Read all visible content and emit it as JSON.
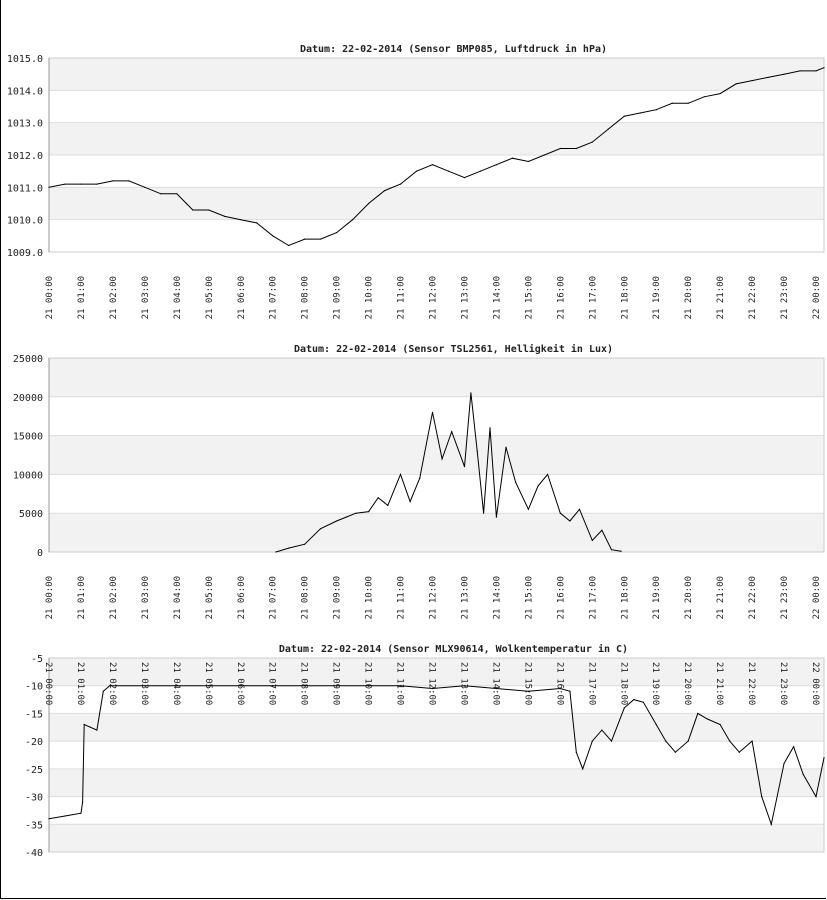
{
  "xticks": [
    "21 00:00",
    "21 01:00",
    "21 02:00",
    "21 03:00",
    "21 04:00",
    "21 05:00",
    "21 06:00",
    "21 07:00",
    "21 08:00",
    "21 09:00",
    "21 10:00",
    "21 11:00",
    "21 12:00",
    "21 13:00",
    "21 14:00",
    "21 15:00",
    "21 16:00",
    "21 17:00",
    "21 18:00",
    "21 19:00",
    "21 20:00",
    "21 21:00",
    "21 22:00",
    "21 23:00",
    "22 00:00"
  ],
  "chart_data": [
    {
      "type": "line",
      "title": "Datum: 22-02-2014 (Sensor BMP085, Luftdruck in hPa)",
      "xlabel": "",
      "ylabel": "",
      "ylim": [
        1009.0,
        1015.0
      ],
      "yticks": [
        "1015.0",
        "1014.0",
        "1013.0",
        "1012.0",
        "1011.0",
        "1010.0",
        "1009.0"
      ],
      "xlim": [
        0,
        24.25
      ],
      "grid": true,
      "series": [
        {
          "x": [
            0,
            0.5,
            1,
            1.5,
            2,
            2.5,
            3,
            3.5,
            4,
            4.3,
            4.5,
            5,
            5.5,
            6,
            6.5,
            7,
            7.5,
            8,
            8.5,
            9,
            9.5,
            10,
            10.5,
            11,
            11.5,
            12,
            12.5,
            13,
            13.5,
            14,
            14.5,
            15,
            15.5,
            16,
            16.5,
            17,
            17.5,
            18,
            18.5,
            19,
            19.5,
            20,
            20.5,
            21,
            21.5,
            22,
            22.5,
            23,
            23.5,
            24,
            24.25
          ],
          "y": [
            1011.0,
            1011.1,
            1011.1,
            1011.1,
            1011.2,
            1011.2,
            1011.0,
            1010.8,
            1010.8,
            1010.5,
            1010.3,
            1010.3,
            1010.1,
            1010.0,
            1009.9,
            1009.5,
            1009.2,
            1009.4,
            1009.4,
            1009.6,
            1010.0,
            1010.5,
            1010.9,
            1011.1,
            1011.5,
            1011.7,
            1011.5,
            1011.3,
            1011.5,
            1011.7,
            1011.9,
            1011.8,
            1012.0,
            1012.2,
            1012.2,
            1012.4,
            1012.8,
            1013.2,
            1013.3,
            1013.4,
            1013.6,
            1013.6,
            1013.8,
            1013.9,
            1014.2,
            1014.3,
            1014.4,
            1014.5,
            1014.6,
            1014.6,
            1014.7
          ]
        }
      ]
    },
    {
      "type": "line",
      "title": "Datum: 22-02-2014 (Sensor TSL2561, Helligkeit in Lux)",
      "xlabel": "",
      "ylabel": "",
      "ylim": [
        0,
        25000
      ],
      "yticks": [
        "25000",
        "20000",
        "15000",
        "10000",
        "5000",
        "0"
      ],
      "xlim": [
        0,
        24.25
      ],
      "grid": true,
      "series": [
        {
          "x": [
            7.1,
            7.5,
            8,
            8.5,
            9,
            9.3,
            9.6,
            10,
            10.3,
            10.6,
            11,
            11.3,
            11.6,
            12,
            12.3,
            12.6,
            13,
            13.2,
            13.4,
            13.6,
            13.8,
            14,
            14.3,
            14.6,
            15,
            15.3,
            15.6,
            16,
            16.3,
            16.6,
            17,
            17.3,
            17.6,
            17.9
          ],
          "y": [
            0,
            500,
            1000,
            3000,
            4000,
            4500,
            5000,
            5200,
            7000,
            6000,
            10000,
            6500,
            9500,
            18000,
            12000,
            15500,
            11000,
            20500,
            13000,
            5000,
            16000,
            4500,
            13500,
            9000,
            5500,
            8500,
            10000,
            5000,
            4000,
            5500,
            1500,
            2800,
            300,
            100
          ]
        }
      ]
    },
    {
      "type": "line",
      "title": "Datum: 22-02-2014 (Sensor MLX90614, Wolkentemperatur in C)",
      "xlabel": "",
      "ylabel": "",
      "ylim": [
        -40,
        -5
      ],
      "yticks": [
        "-5",
        "-10",
        "-15",
        "-20",
        "-25",
        "-30",
        "-35",
        "-40"
      ],
      "xlim": [
        0,
        24.25
      ],
      "grid": true,
      "series": [
        {
          "x": [
            0,
            0.5,
            1,
            1.05,
            1.1,
            1.3,
            1.5,
            1.7,
            1.9,
            2.1,
            3,
            4,
            5,
            6,
            7,
            8,
            9,
            10,
            11,
            12,
            13,
            14,
            15,
            16,
            16.3,
            16.5,
            16.7,
            17,
            17.3,
            17.6,
            18,
            18.3,
            18.6,
            19,
            19.3,
            19.6,
            20,
            20.3,
            20.6,
            21,
            21.3,
            21.6,
            22,
            22.3,
            22.6,
            23,
            23.3,
            23.6,
            24,
            24.25
          ],
          "y": [
            -34,
            -33.5,
            -33,
            -31,
            -17,
            -17.5,
            -18,
            -11,
            -10,
            -10,
            -10,
            -10,
            -10,
            -10,
            -10,
            -10,
            -10,
            -10,
            -10,
            -10.5,
            -10,
            -10.5,
            -11,
            -10.5,
            -11,
            -22,
            -25,
            -20,
            -18,
            -20,
            -14,
            -12.5,
            -13,
            -17,
            -20,
            -22,
            -20,
            -15,
            -16,
            -17,
            -20,
            -22,
            -20,
            -30,
            -35,
            -24,
            -21,
            -26,
            -30,
            -23
          ]
        }
      ]
    }
  ]
}
